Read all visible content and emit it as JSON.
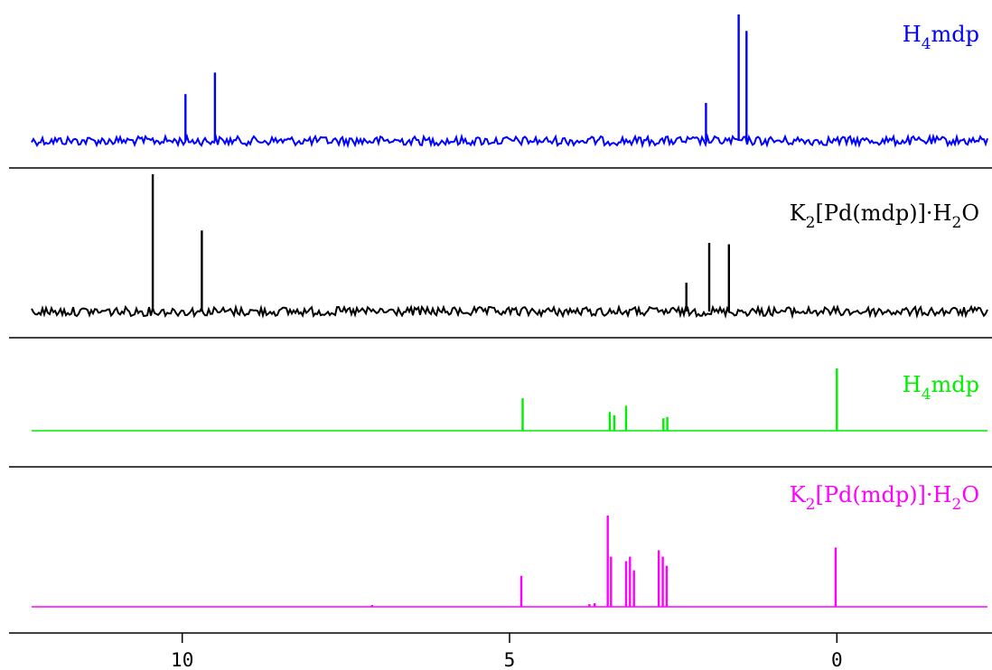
{
  "chart_data": {
    "type": "line",
    "xlim": [
      12.3,
      -2.3
    ],
    "x_direction": "reversed",
    "x_ticks": [
      10,
      5,
      0
    ],
    "x_tick_labels": [
      "10",
      "5",
      "0"
    ],
    "xlabel": "",
    "ylabel": "",
    "grid": false,
    "legend": "none",
    "panels": [
      {
        "label": {
          "base": "H",
          "sub": "4",
          "tail": "mdp"
        },
        "color": "#0000ff",
        "noise": "high",
        "peaks": [
          {
            "ppm": 9.95,
            "height": 0.37
          },
          {
            "ppm": 9.5,
            "height": 0.54
          },
          {
            "ppm": 2.0,
            "height": 0.3
          },
          {
            "ppm": 1.5,
            "height": 1.0
          },
          {
            "ppm": 1.38,
            "height": 0.87
          }
        ]
      },
      {
        "label": {
          "base": "K",
          "sub": "2",
          "tail": "[Pd(mdp)]·H",
          "sub2": "2",
          "tail2": "O"
        },
        "color": "#000000",
        "noise": "high",
        "peaks": [
          {
            "ppm": 10.45,
            "height": 1.0
          },
          {
            "ppm": 9.7,
            "height": 0.59
          },
          {
            "ppm": 2.3,
            "height": 0.21
          },
          {
            "ppm": 1.95,
            "height": 0.5
          },
          {
            "ppm": 1.65,
            "height": 0.49
          }
        ]
      },
      {
        "label": {
          "base": "H",
          "sub": "4",
          "tail": "mdp"
        },
        "color": "#00ee00",
        "noise": "none",
        "peaks": [
          {
            "ppm": 4.8,
            "height": 0.52
          },
          {
            "ppm": 3.47,
            "height": 0.3
          },
          {
            "ppm": 3.4,
            "height": 0.25
          },
          {
            "ppm": 3.22,
            "height": 0.4
          },
          {
            "ppm": 2.65,
            "height": 0.2
          },
          {
            "ppm": 2.59,
            "height": 0.22
          },
          {
            "ppm": 0.0,
            "height": 1.0
          }
        ]
      },
      {
        "label": {
          "base": "K",
          "sub": "2",
          "tail": "[Pd(mdp)]·H",
          "sub2": "2",
          "tail2": "O"
        },
        "color": "#ff00ff",
        "noise": "none",
        "peaks": [
          {
            "ppm": 7.1,
            "height": 0.02
          },
          {
            "ppm": 4.82,
            "height": 0.34
          },
          {
            "ppm": 3.78,
            "height": 0.03
          },
          {
            "ppm": 3.7,
            "height": 0.04
          },
          {
            "ppm": 3.5,
            "height": 1.0
          },
          {
            "ppm": 3.45,
            "height": 0.55
          },
          {
            "ppm": 3.22,
            "height": 0.5
          },
          {
            "ppm": 3.16,
            "height": 0.55
          },
          {
            "ppm": 3.1,
            "height": 0.4
          },
          {
            "ppm": 2.72,
            "height": 0.62
          },
          {
            "ppm": 2.66,
            "height": 0.55
          },
          {
            "ppm": 2.6,
            "height": 0.45
          },
          {
            "ppm": 0.02,
            "height": 0.65
          }
        ]
      }
    ]
  }
}
